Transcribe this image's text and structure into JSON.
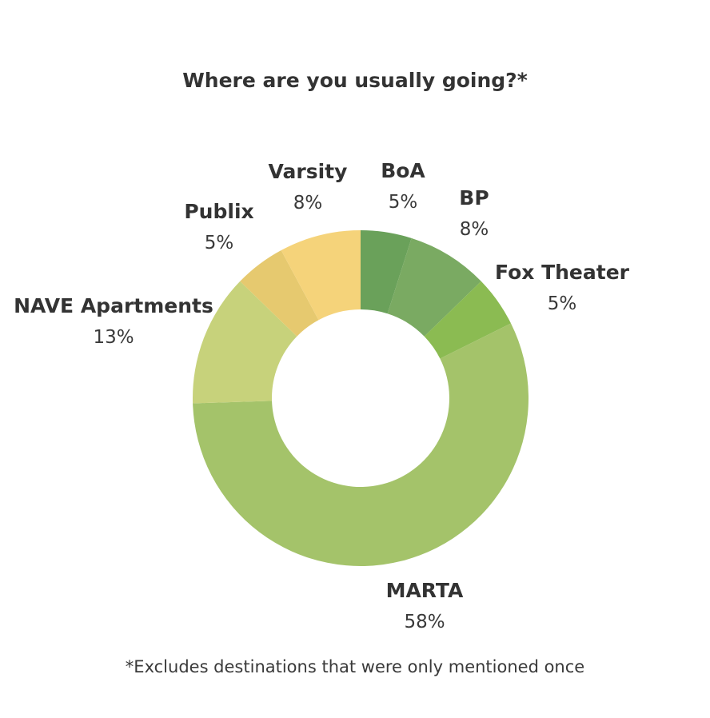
{
  "chart_data": {
    "type": "pie",
    "style": "donut",
    "title": "Where are you usually going?*",
    "footnote": "*Excludes destinations that were only mentioned once",
    "slices": [
      {
        "name": "BoA",
        "value": 5,
        "label": "5%",
        "color": "#6aa15a"
      },
      {
        "name": "BP",
        "value": 8,
        "label": "8%",
        "color": "#7aaa62"
      },
      {
        "name": "Fox Theater",
        "value": 5,
        "label": "5%",
        "color": "#8bbb52"
      },
      {
        "name": "MARTA",
        "value": 58,
        "label": "58%",
        "color": "#a4c36a"
      },
      {
        "name": "NAVE Apartments",
        "value": 13,
        "label": "13%",
        "color": "#c7d27b"
      },
      {
        "name": "Publix",
        "value": 5,
        "label": "5%",
        "color": "#e6c96f"
      },
      {
        "name": "Varsity",
        "value": 8,
        "label": "8%",
        "color": "#f5d37a"
      }
    ]
  }
}
